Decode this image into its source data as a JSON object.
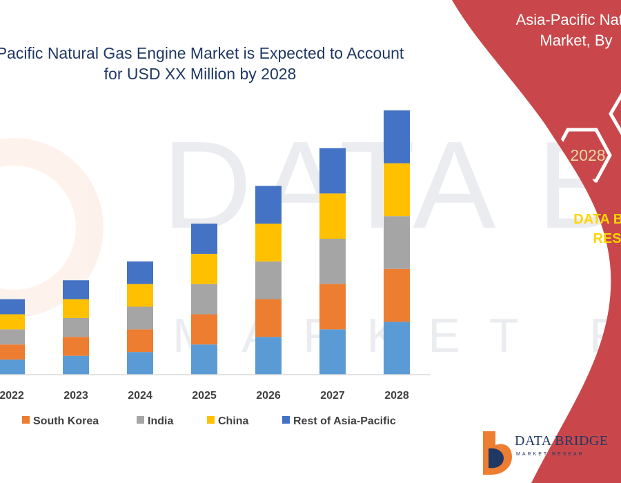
{
  "header": {
    "title_line1": "Pacific Natural Gas Engine Market is Expected to Account",
    "title_line2": "for USD XX Million by 2028"
  },
  "panel": {
    "title_line1": "Asia-Pacific Natur",
    "title_line2": "Market, By",
    "hex_year": "2028",
    "brand_line1": "DATA BRII",
    "brand_line2": "RES"
  },
  "logo": {
    "name": "DATA BRIDGE",
    "tagline": "MARKET RESEAR"
  },
  "colors": {
    "panel_red": "#c9474a",
    "title_navy": "#1f3864",
    "japan": "#5b9bd5",
    "south_korea": "#ed7d31",
    "india": "#a5a5a5",
    "china": "#ffc000",
    "rest_of_asia_pacific": "#4472c4"
  },
  "chart_data": {
    "type": "bar",
    "stacked": true,
    "categories": [
      "2022",
      "2023",
      "2024",
      "2025",
      "2026",
      "2027",
      "2028"
    ],
    "series": [
      {
        "name": "",
        "color": "#5b9bd5",
        "values": [
          20,
          25,
          30,
          40,
          50,
          60,
          70
        ]
      },
      {
        "name": "South Korea",
        "color": "#ed7d31",
        "values": [
          20,
          25,
          30,
          40,
          50,
          60,
          70
        ]
      },
      {
        "name": "India",
        "color": "#a5a5a5",
        "values": [
          20,
          25,
          30,
          40,
          50,
          60,
          70
        ]
      },
      {
        "name": "China",
        "color": "#ffc000",
        "values": [
          20,
          25,
          30,
          40,
          50,
          60,
          70
        ]
      },
      {
        "name": "Rest of Asia-Pacific",
        "color": "#4472c4",
        "values": [
          20,
          25,
          30,
          40,
          50,
          60,
          70
        ]
      }
    ],
    "ylim": [
      0,
      350
    ],
    "grid": false,
    "legend_placement": "bottom"
  }
}
